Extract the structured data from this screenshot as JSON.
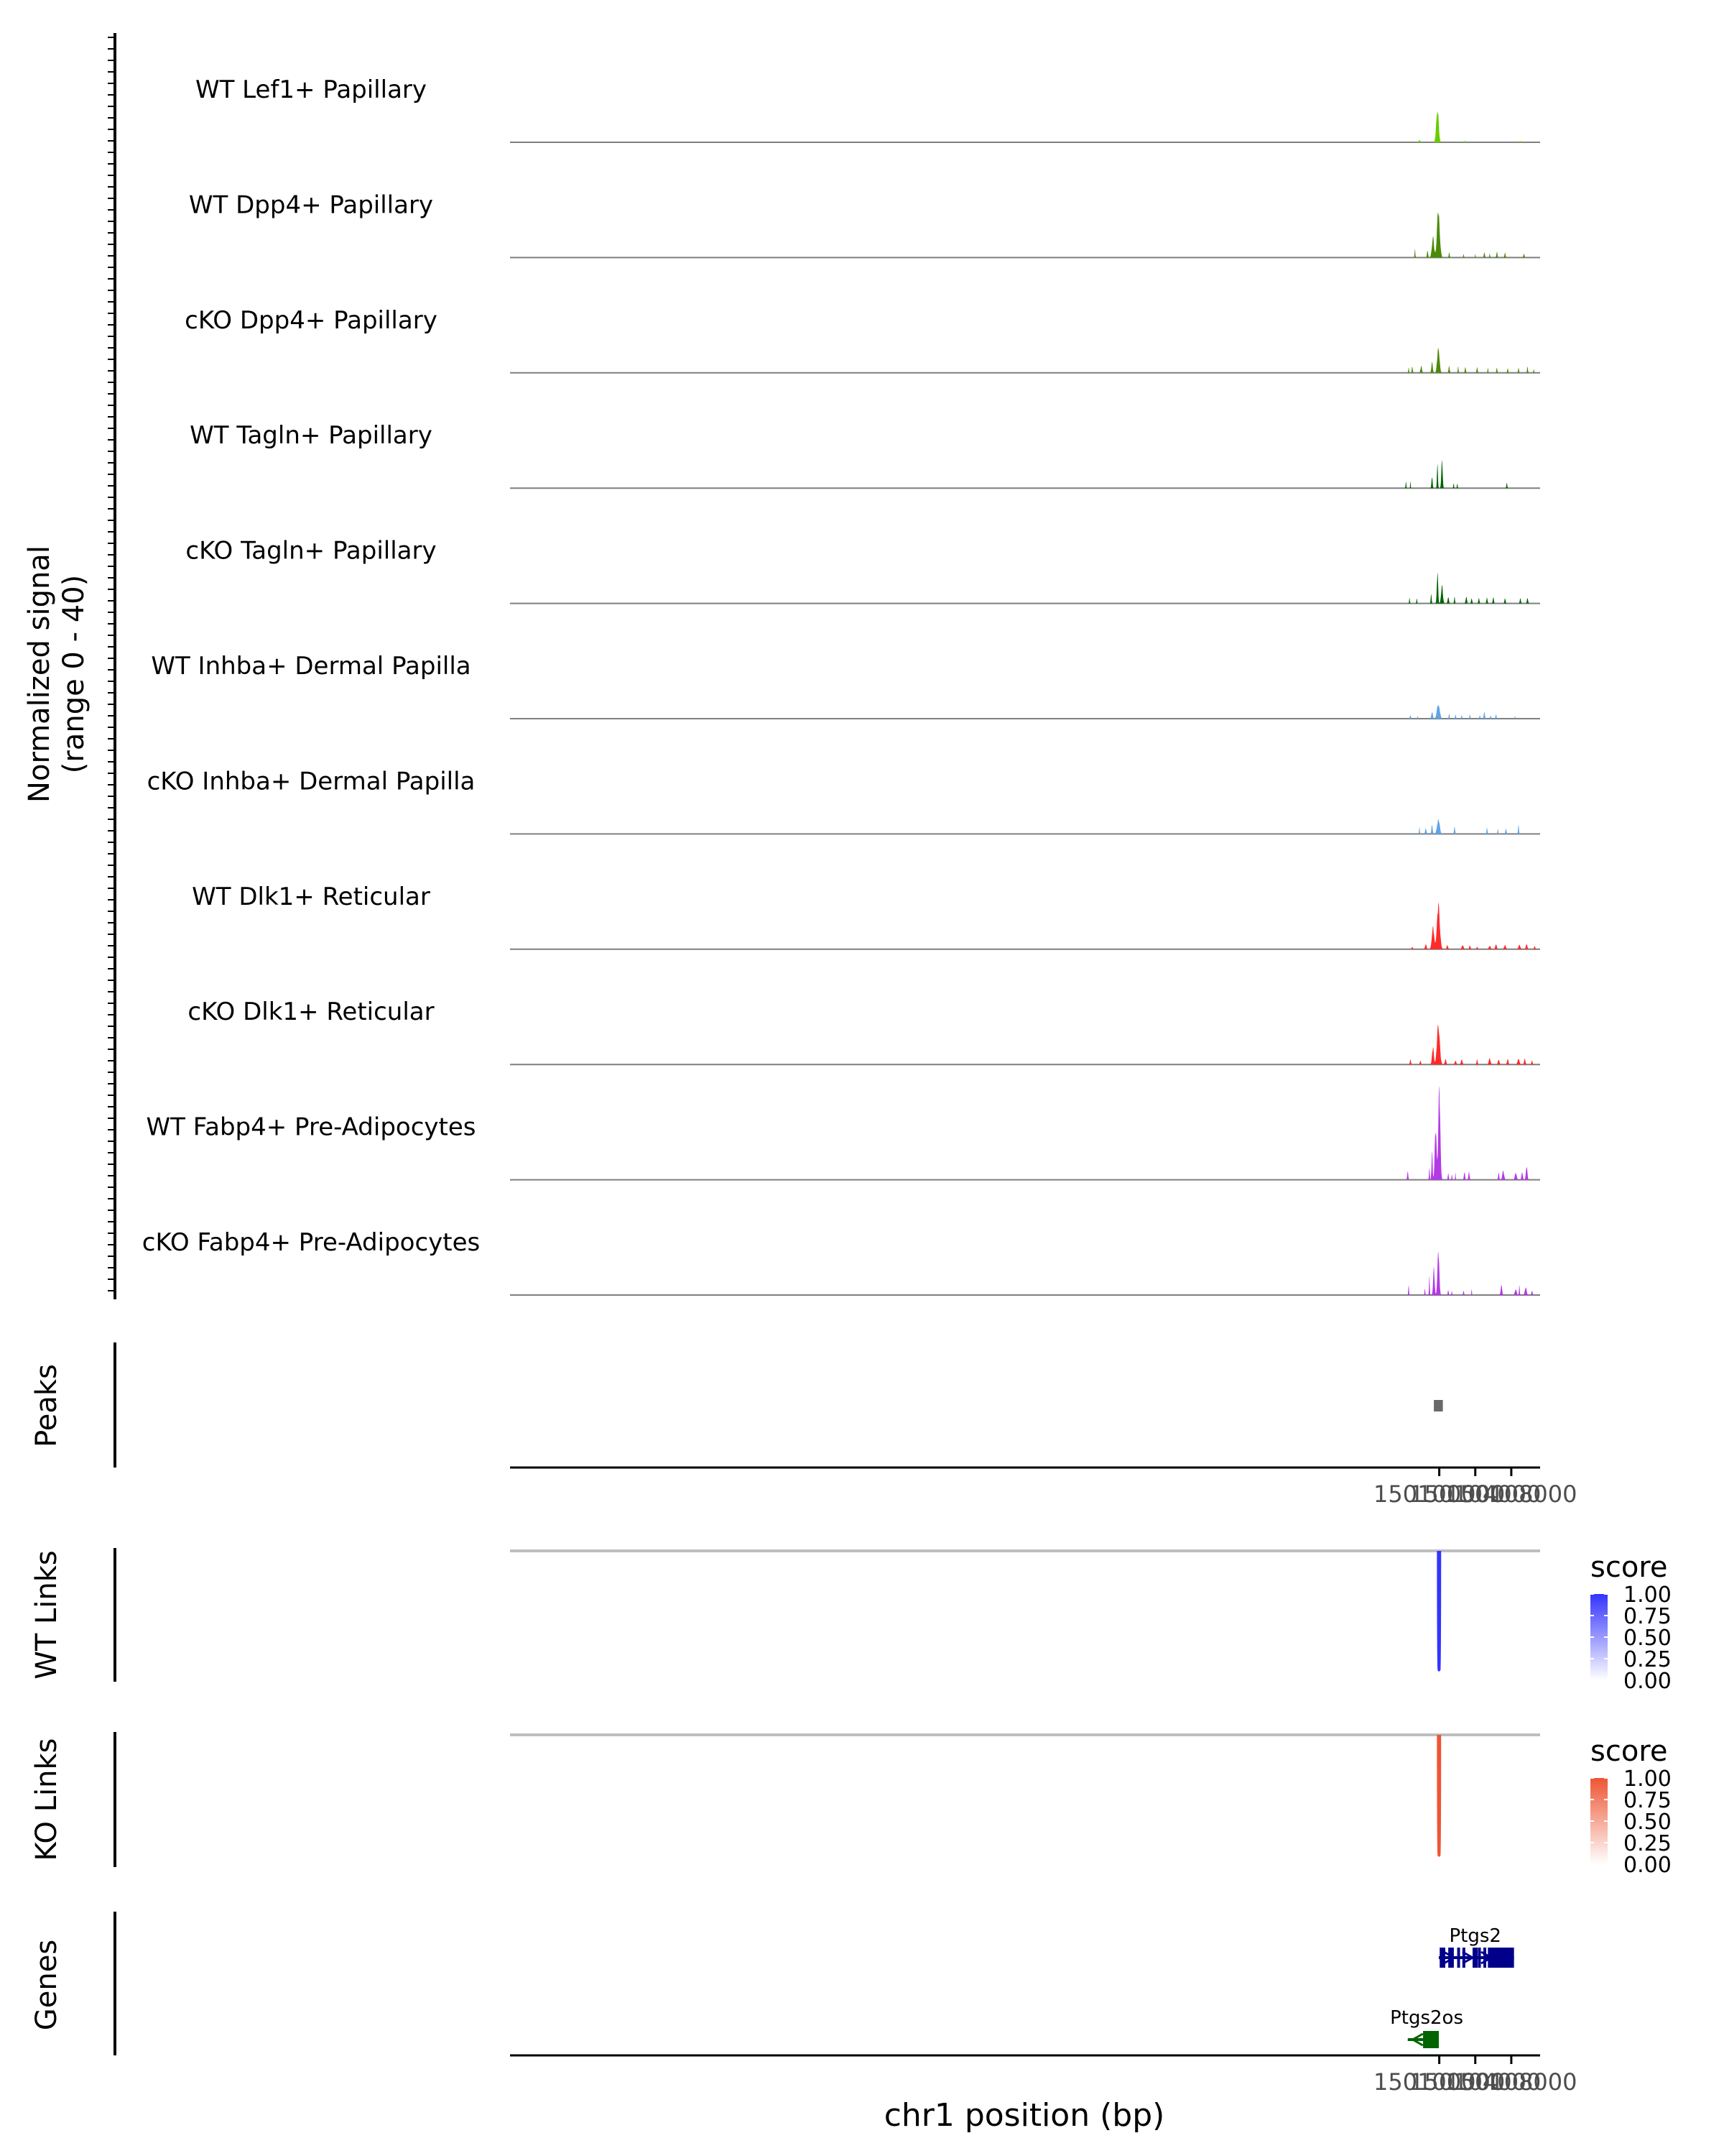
{
  "chart_data": {
    "type": "area",
    "title": "",
    "region": "chr1:149,996,800-150,111,200",
    "xlabel": "chr1 position (bp)",
    "x_range": [
      149996800,
      150111200
    ],
    "x_ticks": [
      150100000,
      150104000,
      150108000
    ],
    "x_tick_labels": [
      "150100000",
      "150104000",
      "150108000"
    ],
    "coverage": {
      "ylabel_line1": "Normalized signal",
      "ylabel_line2": "(range 0 - 40)",
      "ylim": [
        0,
        40
      ],
      "tracks": [
        {
          "name": "WT Lef1+ Papillary",
          "color": "#66CC00",
          "peaks": [
            [
              150099800,
              130,
              10
            ],
            [
              150097800,
              100,
              0.6
            ],
            [
              150102900,
              120,
              0.4
            ],
            [
              150109000,
              100,
              0.4
            ]
          ]
        },
        {
          "name": "WT Dpp4+ Papillary",
          "color": "#4B8A08",
          "peaks": [
            [
              150099900,
              150,
              14
            ],
            [
              150099300,
              120,
              6
            ],
            [
              150098700,
              60,
              2.2
            ],
            [
              150097300,
              40,
              2.5
            ],
            [
              150101100,
              50,
              1.5
            ],
            [
              150102700,
              40,
              1.2
            ],
            [
              150104000,
              30,
              1.2
            ],
            [
              150105000,
              60,
              1.6
            ],
            [
              150105600,
              40,
              1.2
            ],
            [
              150106400,
              60,
              1.6
            ],
            [
              150107300,
              60,
              1.4
            ],
            [
              150109400,
              60,
              1.2
            ]
          ]
        },
        {
          "name": "cKO Dpp4+ Papillary",
          "color": "#4B8A08",
          "peaks": [
            [
              150099900,
              120,
              8
            ],
            [
              150099200,
              80,
              3
            ],
            [
              150098000,
              80,
              2.0
            ],
            [
              150097000,
              50,
              2.0
            ],
            [
              150096600,
              40,
              1.6
            ],
            [
              150101100,
              60,
              2.0
            ],
            [
              150102100,
              40,
              2.2
            ],
            [
              150102900,
              60,
              1.6
            ],
            [
              150104200,
              60,
              1.6
            ],
            [
              150105400,
              40,
              1.4
            ],
            [
              150106400,
              50,
              1.6
            ],
            [
              150107600,
              50,
              1.4
            ],
            [
              150108800,
              50,
              1.6
            ],
            [
              150109800,
              50,
              1.8
            ],
            [
              150110500,
              40,
              1.2
            ]
          ]
        },
        {
          "name": "WT Tagln+ Papillary",
          "color": "#006400",
          "peaks": [
            [
              150099800,
              50,
              8
            ],
            [
              150100300,
              70,
              9
            ],
            [
              150099200,
              60,
              3.5
            ],
            [
              150096300,
              40,
              2.0
            ],
            [
              150096800,
              30,
              2.0
            ],
            [
              150101600,
              40,
              1.5
            ],
            [
              150102000,
              40,
              1.5
            ],
            [
              150107500,
              50,
              1.5
            ]
          ]
        },
        {
          "name": "cKO Tagln+ Papillary",
          "color": "#006400",
          "peaks": [
            [
              150099800,
              70,
              9
            ],
            [
              150100300,
              100,
              5
            ],
            [
              150099100,
              50,
              3.0
            ],
            [
              150096700,
              40,
              1.6
            ],
            [
              150097500,
              40,
              1.6
            ],
            [
              150101000,
              70,
              2.0
            ],
            [
              150101700,
              50,
              1.8
            ],
            [
              150103000,
              70,
              2.0
            ],
            [
              150103600,
              60,
              1.6
            ],
            [
              150104400,
              60,
              1.6
            ],
            [
              150105300,
              60,
              1.8
            ],
            [
              150106000,
              60,
              1.8
            ],
            [
              150107300,
              60,
              1.6
            ],
            [
              150109000,
              60,
              1.6
            ],
            [
              150109800,
              60,
              1.8
            ]
          ]
        },
        {
          "name": "WT Inhba+ Dermal Papilla",
          "color": "#5DA5E8",
          "peaks": [
            [
              150099900,
              150,
              4.5
            ],
            [
              150099200,
              80,
              2.0
            ],
            [
              150096800,
              60,
              1.0
            ],
            [
              150097600,
              40,
              0.8
            ],
            [
              150101100,
              50,
              1.4
            ],
            [
              150101800,
              50,
              1.2
            ],
            [
              150102500,
              50,
              1.0
            ],
            [
              150103400,
              50,
              1.2
            ],
            [
              150104500,
              50,
              1.0
            ],
            [
              150105000,
              70,
              1.8
            ],
            [
              150105700,
              50,
              1.0
            ],
            [
              150106300,
              50,
              1.4
            ],
            [
              150108400,
              40,
              0.8
            ]
          ]
        },
        {
          "name": "cKO Inhba+ Dermal Papilla",
          "color": "#5DA5E8",
          "peaks": [
            [
              150099900,
              140,
              4.5
            ],
            [
              150099200,
              70,
              2.5
            ],
            [
              150098500,
              70,
              1.8
            ],
            [
              150097800,
              40,
              1.8
            ],
            [
              150101700,
              60,
              2.0
            ],
            [
              150105300,
              50,
              1.8
            ],
            [
              150106500,
              40,
              1.6
            ],
            [
              150107400,
              60,
              1.6
            ],
            [
              150108800,
              50,
              2.5
            ]
          ]
        },
        {
          "name": "WT Dlk1+ Reticular",
          "color": "#FF2A2A",
          "peaks": [
            [
              150099900,
              160,
              13
            ],
            [
              150099300,
              120,
              7
            ],
            [
              150098500,
              80,
              1.5
            ],
            [
              150097000,
              60,
              0.8
            ],
            [
              150100900,
              80,
              1.2
            ],
            [
              150102600,
              100,
              1.2
            ],
            [
              150103400,
              80,
              1.0
            ],
            [
              150104200,
              60,
              0.8
            ],
            [
              150105600,
              100,
              1.0
            ],
            [
              150106300,
              80,
              1.6
            ],
            [
              150107300,
              100,
              1.2
            ],
            [
              150108900,
              100,
              1.4
            ],
            [
              150109700,
              80,
              1.6
            ],
            [
              150110600,
              60,
              1.0
            ]
          ]
        },
        {
          "name": "cKO Dlk1+ Reticular",
          "color": "#FF2A2A",
          "peaks": [
            [
              150099900,
              150,
              12
            ],
            [
              150099300,
              100,
              5
            ],
            [
              150096800,
              60,
              1.6
            ],
            [
              150097900,
              60,
              1.2
            ],
            [
              150100700,
              80,
              1.6
            ],
            [
              150101800,
              80,
              1.2
            ],
            [
              150102500,
              80,
              1.6
            ],
            [
              150104200,
              60,
              1.4
            ],
            [
              150105600,
              100,
              1.8
            ],
            [
              150106600,
              80,
              1.6
            ],
            [
              150107600,
              80,
              1.6
            ],
            [
              150108800,
              100,
              1.8
            ],
            [
              150109500,
              80,
              1.6
            ],
            [
              150110300,
              60,
              1.2
            ]
          ]
        },
        {
          "name": "WT Fabp4+ Pre-Adipocytes",
          "color": "#B339E6",
          "peaks": [
            [
              150100000,
              110,
              27
            ],
            [
              150099600,
              100,
              15
            ],
            [
              150099200,
              60,
              8
            ],
            [
              150098900,
              40,
              4
            ],
            [
              150096500,
              60,
              2.2
            ],
            [
              150101000,
              50,
              2.0
            ],
            [
              150101400,
              40,
              1.6
            ],
            [
              150101800,
              30,
              2.0
            ],
            [
              150102800,
              60,
              2.4
            ],
            [
              150103300,
              60,
              2.6
            ],
            [
              150106600,
              60,
              2.0
            ],
            [
              150107100,
              100,
              2.6
            ],
            [
              150108500,
              100,
              2.0
            ],
            [
              150109200,
              70,
              2.4
            ],
            [
              150109700,
              80,
              4.0
            ]
          ]
        },
        {
          "name": "cKO Fabp4+ Pre-Adipocytes",
          "color": "#B339E6",
          "peaks": [
            [
              150099900,
              100,
              13
            ],
            [
              150099400,
              80,
              8
            ],
            [
              150098900,
              40,
              5.5
            ],
            [
              150096600,
              40,
              3.2
            ],
            [
              150098400,
              40,
              2.0
            ],
            [
              150101000,
              50,
              1.6
            ],
            [
              150101400,
              40,
              1.2
            ],
            [
              150102700,
              50,
              1.4
            ],
            [
              150103600,
              30,
              2.0
            ],
            [
              150106900,
              80,
              2.8
            ],
            [
              150108500,
              100,
              1.8
            ],
            [
              150108900,
              40,
              3.2
            ],
            [
              150109600,
              100,
              2.2
            ],
            [
              150110300,
              60,
              1.4
            ]
          ]
        }
      ]
    },
    "peaks_track": {
      "label": "Peaks",
      "regions": [
        [
          150099400,
          150100400
        ]
      ],
      "color": "#696969"
    },
    "links": [
      {
        "label": "WT Links",
        "legend_title": "score",
        "color": "#3333FF",
        "arcs": [
          [
            150099900,
            150100050,
            1.0
          ]
        ]
      },
      {
        "label": "KO Links",
        "legend_title": "score",
        "color": "#EE5533",
        "arcs": [
          [
            150099900,
            150100050,
            1.0
          ]
        ]
      }
    ],
    "score_legend": {
      "min": 0,
      "max": 1,
      "tick_labels": [
        "1.00",
        "0.75",
        "0.50",
        "0.25",
        "0.00"
      ]
    },
    "genes_track": {
      "label": "Genes",
      "genes": [
        {
          "name": "Ptgs2",
          "strand": "+",
          "color": "#00008B",
          "start": 150099950,
          "end": 150108300,
          "exons": [
            [
              150100050,
              150100300
            ],
            [
              150100350,
              150100500
            ],
            [
              150101000,
              150101100
            ],
            [
              150101300,
              150101430
            ],
            [
              150101990,
              150102110
            ],
            [
              150102570,
              150102730
            ],
            [
              150103700,
              150103830
            ],
            [
              150103950,
              150104200
            ],
            [
              150104300,
              150104550
            ],
            [
              150104900,
              150105050
            ],
            [
              150105400,
              150108300
            ]
          ]
        },
        {
          "name": "Ptgs2os",
          "strand": "-",
          "color": "#006400",
          "start": 150096500,
          "end": 150099950,
          "exons": [
            [
              150098200,
              150099950
            ]
          ]
        }
      ]
    }
  }
}
